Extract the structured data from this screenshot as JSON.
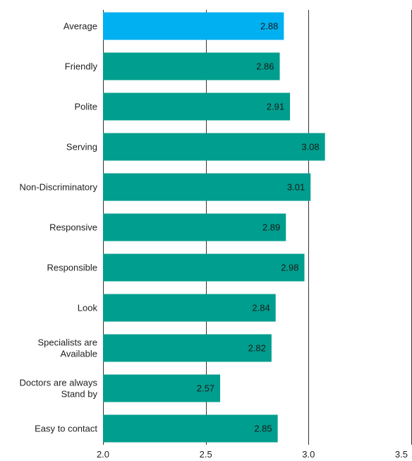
{
  "chart_data": {
    "type": "bar",
    "orientation": "horizontal",
    "categories": [
      "Average",
      "Friendly",
      "Polite",
      "Serving",
      "Non-Discriminatory",
      "Responsive",
      "Responsible",
      "Look",
      "Specialists are Available",
      "Doctors are always Stand by",
      "Easy to contact"
    ],
    "category_lines": [
      [
        "Average"
      ],
      [
        "Friendly"
      ],
      [
        "Polite"
      ],
      [
        "Serving"
      ],
      [
        "Non-Discriminatory"
      ],
      [
        "Responsive"
      ],
      [
        "Responsible"
      ],
      [
        "Look"
      ],
      [
        "Specialists are",
        "Available"
      ],
      [
        "Doctors are always",
        "Stand by"
      ],
      [
        "Easy to contact"
      ]
    ],
    "values": [
      2.88,
      2.86,
      2.91,
      3.08,
      3.01,
      2.89,
      2.98,
      2.84,
      2.82,
      2.57,
      2.85
    ],
    "value_labels": [
      "2.88",
      "2.86",
      "2.91",
      "3.08",
      "3.01",
      "2.89",
      "2.98",
      "2.84",
      "2.82",
      "2.57",
      "2.85"
    ],
    "xlim": [
      2.0,
      3.5
    ],
    "xticks": [
      2.0,
      2.5,
      3.0,
      3.5
    ],
    "xtick_labels": [
      "2.0",
      "2.5",
      "3.0",
      "3.5"
    ],
    "gridlines": "vertical",
    "legend": "none",
    "colors": {
      "highlight": "#00B0F0",
      "bar": "#009E8E",
      "grid": "#333333"
    },
    "highlight_index": 0
  }
}
